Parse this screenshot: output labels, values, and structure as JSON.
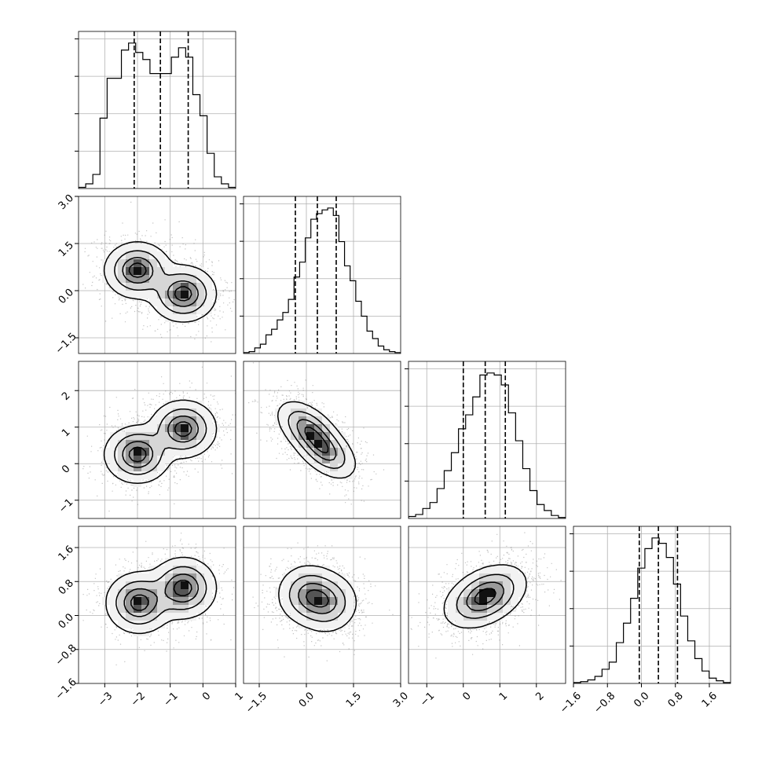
{
  "chart_data": {
    "type": "corner",
    "title": "",
    "grid": true,
    "quantile_lines": "dashed",
    "params": [
      {
        "range": [
          -3.8,
          1
        ],
        "ticks": [
          -3,
          -2,
          -1,
          0,
          1
        ],
        "tick_labels": [
          "−3",
          "−2",
          "−1",
          "0",
          "1"
        ],
        "quantiles": [
          -2.1,
          -1.3,
          -0.45
        ],
        "hist": [
          0.005,
          0.02,
          0.06,
          0.3,
          0.47,
          0.47,
          0.59,
          0.62,
          0.58,
          0.55,
          0.49,
          0.49,
          0.49,
          0.56,
          0.6,
          0.56,
          0.4,
          0.31,
          0.15,
          0.05,
          0.02,
          0.005
        ]
      },
      {
        "range": [
          -2.0,
          3.0
        ],
        "ticks": [
          -1.5,
          0.0,
          1.5,
          3.0
        ],
        "tick_labels": [
          "−1.5",
          "0.0",
          "1.5",
          "3.0"
        ],
        "quantiles": [
          -0.35,
          0.35,
          0.95
        ],
        "hist": [
          0.005,
          0.01,
          0.03,
          0.05,
          0.1,
          0.13,
          0.18,
          0.22,
          0.29,
          0.41,
          0.49,
          0.62,
          0.72,
          0.75,
          0.77,
          0.78,
          0.74,
          0.6,
          0.47,
          0.39,
          0.28,
          0.2,
          0.12,
          0.08,
          0.04,
          0.02,
          0.01,
          0.005
        ]
      },
      {
        "range": [
          -1.5,
          2.8
        ],
        "ticks": [
          -1,
          0,
          1,
          2
        ],
        "tick_labels": [
          "−1",
          "0",
          "1",
          "2"
        ],
        "quantiles": [
          0.0,
          0.6,
          1.15
        ],
        "hist": [
          0.01,
          0.02,
          0.05,
          0.08,
          0.15,
          0.24,
          0.33,
          0.45,
          0.52,
          0.61,
          0.72,
          0.73,
          0.72,
          0.67,
          0.53,
          0.39,
          0.25,
          0.14,
          0.07,
          0.04,
          0.015,
          0.005
        ]
      },
      {
        "range": [
          -1.6,
          2.1
        ],
        "ticks": [
          -1.6,
          -0.8,
          0.0,
          0.8,
          1.6
        ],
        "tick_labels": [
          "−1.6",
          "−0.8",
          "0.0",
          "0.8",
          "1.6"
        ],
        "quantiles": [
          -0.05,
          0.4,
          0.85
        ],
        "hist": [
          0.005,
          0.01,
          0.02,
          0.04,
          0.08,
          0.12,
          0.23,
          0.34,
          0.48,
          0.65,
          0.76,
          0.82,
          0.79,
          0.71,
          0.56,
          0.38,
          0.24,
          0.14,
          0.07,
          0.03,
          0.015,
          0.005
        ]
      }
    ],
    "pairs": [
      {
        "row": 1,
        "col": 0,
        "modes": [
          [
            -2.0,
            0.65,
            0.45,
            0.4,
            0.0
          ],
          [
            -0.6,
            -0.1,
            0.45,
            0.4,
            0.0
          ]
        ]
      },
      {
        "row": 2,
        "col": 0,
        "modes": [
          [
            -2.0,
            0.25,
            0.45,
            0.35,
            0.0
          ],
          [
            -0.6,
            0.95,
            0.45,
            0.35,
            0.0
          ]
        ]
      },
      {
        "row": 2,
        "col": 1,
        "modes": [
          [
            0.05,
            0.95,
            0.45,
            0.35,
            -0.5
          ],
          [
            0.6,
            0.35,
            0.45,
            0.35,
            -0.5
          ]
        ]
      },
      {
        "row": 3,
        "col": 0,
        "modes": [
          [
            -1.95,
            0.3,
            0.45,
            0.32,
            0.0
          ],
          [
            -0.6,
            0.65,
            0.45,
            0.32,
            0.0
          ]
        ]
      },
      {
        "row": 3,
        "col": 1,
        "modes": [
          [
            0.05,
            0.5,
            0.45,
            0.32,
            0.0
          ],
          [
            0.65,
            0.3,
            0.45,
            0.32,
            0.0
          ]
        ]
      },
      {
        "row": 3,
        "col": 2,
        "modes": [
          [
            0.6,
            0.45,
            0.5,
            0.33,
            0.4
          ]
        ]
      }
    ]
  }
}
